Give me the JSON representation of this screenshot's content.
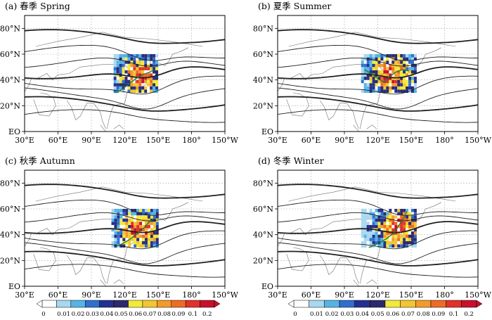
{
  "chart_data": [
    {
      "type": "heatmap",
      "title": "(a) 春季 Spring",
      "x_tick_labels": [
        "30°E",
        "60°E",
        "90°E",
        "120°E",
        "150°E",
        "180°",
        "150°W"
      ],
      "y_tick_labels": [
        "EO",
        "20°N",
        "40°N",
        "60°N",
        "80°N"
      ],
      "xlim": [
        30,
        210
      ],
      "ylim": [
        0,
        90
      ],
      "grid": true,
      "series": []
    },
    {
      "type": "heatmap",
      "title": "(b) 夏季 Summer",
      "x_tick_labels": [
        "30°E",
        "60°E",
        "90°E",
        "120°E",
        "150°E",
        "180°",
        "150°W"
      ],
      "y_tick_labels": [
        "EO",
        "20°N",
        "40°N",
        "60°N",
        "80°N"
      ],
      "xlim": [
        30,
        210
      ],
      "ylim": [
        0,
        90
      ],
      "grid": true,
      "series": []
    },
    {
      "type": "heatmap",
      "title": "(c) 秋季 Autumn",
      "x_tick_labels": [
        "30°E",
        "60°E",
        "90°E",
        "120°E",
        "150°E",
        "180°",
        "150°W"
      ],
      "y_tick_labels": [
        "EO",
        "20°N",
        "40°N",
        "60°N",
        "80°N"
      ],
      "xlim": [
        30,
        210
      ],
      "ylim": [
        0,
        90
      ],
      "grid": true,
      "series": []
    },
    {
      "type": "heatmap",
      "title": "(d) 冬季 Winter",
      "x_tick_labels": [
        "30°E",
        "60°E",
        "90°E",
        "120°E",
        "150°E",
        "180°",
        "150°W"
      ],
      "y_tick_labels": [
        "EO",
        "20°N",
        "40°N",
        "60°N",
        "80°N"
      ],
      "xlim": [
        30,
        210
      ],
      "ylim": [
        0,
        90
      ],
      "grid": true,
      "series": []
    }
  ],
  "colorbar": {
    "labels": [
      "0",
      "0.01",
      "0.02",
      "0.03",
      "0.04",
      "0.05",
      "0.06",
      "0.07",
      "0.08",
      "0.09",
      "0.1",
      "0.2"
    ],
    "colors": [
      "#ffffff",
      "#a8d8f0",
      "#55b4e6",
      "#2f6fce",
      "#24308f",
      "#2c2a6a",
      "#f2ea3a",
      "#f4c531",
      "#f29a2a",
      "#ee6b24",
      "#e0312a",
      "#c8102e"
    ]
  }
}
